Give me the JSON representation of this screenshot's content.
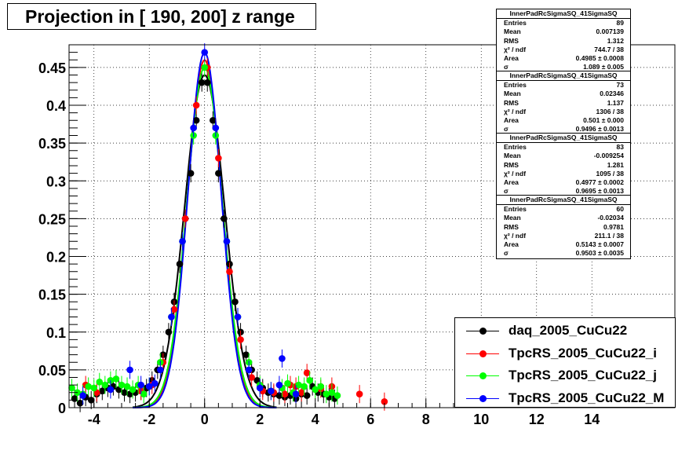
{
  "title": "Projection in [ 190, 200] z range",
  "stats": [
    {
      "name": "InnerPadRcSigmaSQ_41SigmaSQ",
      "rows": [
        [
          "Entries",
          "89"
        ],
        [
          "Mean",
          "0.007139"
        ],
        [
          "RMS",
          "1.312"
        ],
        [
          "χ² / ndf",
          "744.7 / 38"
        ],
        [
          "Area",
          "0.4985 ± 0.0008"
        ],
        [
          "σ",
          "1.089 ± 0.005"
        ]
      ]
    },
    {
      "name": "InnerPadRcSigmaSQ_41SigmaSQ",
      "rows": [
        [
          "Entries",
          "73"
        ],
        [
          "Mean",
          "0.02346"
        ],
        [
          "RMS",
          "1.137"
        ],
        [
          "χ² / ndf",
          "1306 / 38"
        ],
        [
          "Area",
          "0.501 ± 0.000"
        ],
        [
          "σ",
          "0.9496 ± 0.0013"
        ]
      ]
    },
    {
      "name": "InnerPadRcSigmaSQ_41SigmaSQ",
      "rows": [
        [
          "Entries",
          "83"
        ],
        [
          "Mean",
          "-0.009254"
        ],
        [
          "RMS",
          "1.281"
        ],
        [
          "χ² / ndf",
          "1095 / 38"
        ],
        [
          "Area",
          "0.4977 ± 0.0002"
        ],
        [
          "σ",
          "0.9695 ± 0.0013"
        ]
      ]
    },
    {
      "name": "InnerPadRcSigmaSQ_41SigmaSQ",
      "rows": [
        [
          "Entries",
          "60"
        ],
        [
          "Mean",
          "-0.02034"
        ],
        [
          "RMS",
          "0.9781"
        ],
        [
          "χ² / ndf",
          "211.1 / 38"
        ],
        [
          "Area",
          "0.5143 ± 0.0007"
        ],
        [
          "σ",
          "0.9503 ± 0.0035"
        ]
      ]
    }
  ],
  "legend": [
    {
      "label": "daq_2005_CuCu22",
      "color": "#000000"
    },
    {
      "label": "TpcRS_2005_CuCu22_i",
      "color": "#ff0000"
    },
    {
      "label": "TpcRS_2005_CuCu22_j",
      "color": "#00ff00"
    },
    {
      "label": "TpcRS_2005_CuCu22_M",
      "color": "#0000ff"
    }
  ],
  "chart_data": {
    "type": "scatter",
    "title": "Projection in [ 190, 200] z range",
    "xlim": [
      -4.9,
      17.0
    ],
    "ylim": [
      0,
      0.48
    ],
    "grid": true,
    "xticks": [
      -4,
      -2,
      0,
      2,
      4,
      6,
      8,
      10,
      12,
      14
    ],
    "yticks": [
      0,
      0.05,
      0.1,
      0.15,
      0.2,
      0.25,
      0.3,
      0.35,
      0.4,
      0.45
    ],
    "series": [
      {
        "name": "daq_2005_CuCu22",
        "color": "#000000",
        "peak": 0.44,
        "sigma": 0.72,
        "points": [
          [
            -4.7,
            0.012
          ],
          [
            -4.5,
            0.006
          ],
          [
            -4.3,
            0.014
          ],
          [
            -4.1,
            0.01
          ],
          [
            -3.9,
            0.018
          ],
          [
            -3.7,
            0.022
          ],
          [
            -3.5,
            0.026
          ],
          [
            -3.3,
            0.028
          ],
          [
            -3.1,
            0.024
          ],
          [
            -2.9,
            0.02
          ],
          [
            -2.7,
            0.018
          ],
          [
            -2.5,
            0.02
          ],
          [
            -2.3,
            0.022
          ],
          [
            -2.1,
            0.026
          ],
          [
            -1.9,
            0.036
          ],
          [
            -1.7,
            0.05
          ],
          [
            -1.5,
            0.07
          ],
          [
            -1.3,
            0.1
          ],
          [
            -1.1,
            0.14
          ],
          [
            -0.9,
            0.19
          ],
          [
            -0.7,
            0.25
          ],
          [
            -0.5,
            0.31
          ],
          [
            -0.3,
            0.38
          ],
          [
            -0.1,
            0.43
          ],
          [
            0.1,
            0.43
          ],
          [
            0.3,
            0.38
          ],
          [
            0.5,
            0.31
          ],
          [
            0.7,
            0.25
          ],
          [
            0.9,
            0.19
          ],
          [
            1.1,
            0.14
          ],
          [
            1.3,
            0.1
          ],
          [
            1.5,
            0.07
          ],
          [
            1.7,
            0.05
          ],
          [
            1.9,
            0.036
          ],
          [
            2.1,
            0.026
          ],
          [
            2.3,
            0.02
          ],
          [
            2.5,
            0.018
          ],
          [
            2.7,
            0.016
          ],
          [
            2.9,
            0.014
          ],
          [
            3.1,
            0.016
          ],
          [
            3.3,
            0.012
          ],
          [
            3.5,
            0.018
          ],
          [
            3.7,
            0.016
          ],
          [
            3.9,
            0.028
          ],
          [
            4.1,
            0.02
          ],
          [
            4.3,
            0.018
          ],
          [
            4.5,
            0.014
          ],
          [
            4.7,
            0.012
          ]
        ]
      },
      {
        "name": "TpcRS_2005_CuCu22_i",
        "color": "#ff0000",
        "peak": 0.46,
        "sigma": 0.62,
        "points": [
          [
            -4.3,
            0.03
          ],
          [
            -3.9,
            0.02
          ],
          [
            -2.3,
            0.022
          ],
          [
            -1.9,
            0.03
          ],
          [
            -1.5,
            0.06
          ],
          [
            -1.1,
            0.13
          ],
          [
            -0.7,
            0.25
          ],
          [
            -0.3,
            0.4
          ],
          [
            0.1,
            0.45
          ],
          [
            0.5,
            0.33
          ],
          [
            0.9,
            0.18
          ],
          [
            1.3,
            0.09
          ],
          [
            1.7,
            0.04
          ],
          [
            2.1,
            0.022
          ],
          [
            2.5,
            0.02
          ],
          [
            2.9,
            0.018
          ],
          [
            3.1,
            0.03
          ],
          [
            3.3,
            0.028
          ],
          [
            3.5,
            0.02
          ],
          [
            3.7,
            0.046
          ],
          [
            4.2,
            0.025
          ],
          [
            4.6,
            0.028
          ],
          [
            5.6,
            0.018
          ],
          [
            6.5,
            0.008
          ]
        ]
      },
      {
        "name": "TpcRS_2005_CuCu22_j",
        "color": "#00ff00",
        "peak": 0.45,
        "sigma": 0.64,
        "points": [
          [
            -4.8,
            0.026
          ],
          [
            -4.6,
            0.02
          ],
          [
            -4.4,
            0.018
          ],
          [
            -4.2,
            0.028
          ],
          [
            -4.0,
            0.026
          ],
          [
            -3.8,
            0.034
          ],
          [
            -3.6,
            0.03
          ],
          [
            -3.4,
            0.036
          ],
          [
            -3.2,
            0.038
          ],
          [
            -3.0,
            0.03
          ],
          [
            -2.8,
            0.028
          ],
          [
            -2.6,
            0.024
          ],
          [
            -2.4,
            0.03
          ],
          [
            -2.2,
            0.018
          ],
          [
            -2.0,
            0.028
          ],
          [
            -1.6,
            0.06
          ],
          [
            -1.2,
            0.12
          ],
          [
            -0.8,
            0.22
          ],
          [
            -0.4,
            0.36
          ],
          [
            0.0,
            0.45
          ],
          [
            0.4,
            0.36
          ],
          [
            0.8,
            0.22
          ],
          [
            1.2,
            0.12
          ],
          [
            1.6,
            0.06
          ],
          [
            2.0,
            0.03
          ],
          [
            2.4,
            0.022
          ],
          [
            2.8,
            0.026
          ],
          [
            3.0,
            0.032
          ],
          [
            3.2,
            0.02
          ],
          [
            3.4,
            0.03
          ],
          [
            3.6,
            0.028
          ],
          [
            3.8,
            0.036
          ],
          [
            4.0,
            0.024
          ],
          [
            4.2,
            0.028
          ],
          [
            4.4,
            0.018
          ],
          [
            4.6,
            0.02
          ],
          [
            4.8,
            0.016
          ]
        ]
      },
      {
        "name": "TpcRS_2005_CuCu22_M",
        "color": "#0000ff",
        "peak": 0.47,
        "sigma": 0.6,
        "points": [
          [
            -4.4,
            0.016
          ],
          [
            -3.4,
            0.024
          ],
          [
            -2.7,
            0.05
          ],
          [
            -2.3,
            0.03
          ],
          [
            -2.0,
            0.028
          ],
          [
            -1.8,
            0.032
          ],
          [
            -1.6,
            0.05
          ],
          [
            -1.2,
            0.12
          ],
          [
            -0.8,
            0.22
          ],
          [
            -0.4,
            0.37
          ],
          [
            0.0,
            0.47
          ],
          [
            0.4,
            0.37
          ],
          [
            0.8,
            0.22
          ],
          [
            1.2,
            0.12
          ],
          [
            1.6,
            0.05
          ],
          [
            2.0,
            0.026
          ],
          [
            2.4,
            0.022
          ],
          [
            2.7,
            0.03
          ],
          [
            2.8,
            0.065
          ],
          [
            3.3,
            0.018
          ]
        ]
      }
    ]
  }
}
